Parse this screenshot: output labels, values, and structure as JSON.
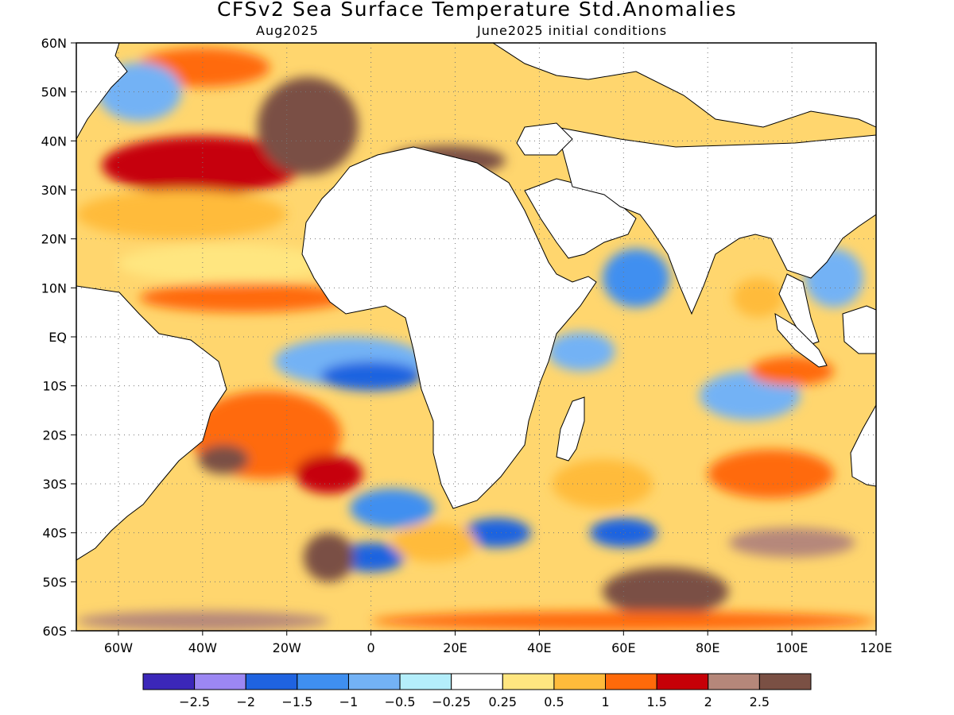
{
  "title": "CFSv2 Sea Surface Temperature Std.Anomalies",
  "subtitle_left": "Aug2025",
  "subtitle_right": "June2025 initial conditions",
  "map": {
    "lon_range": [
      -70,
      120
    ],
    "lat_range": [
      -60,
      60
    ],
    "lat_ticks": [
      {
        "value": 60,
        "label": "60N"
      },
      {
        "value": 50,
        "label": "50N"
      },
      {
        "value": 40,
        "label": "40N"
      },
      {
        "value": 30,
        "label": "30N"
      },
      {
        "value": 20,
        "label": "20N"
      },
      {
        "value": 10,
        "label": "10N"
      },
      {
        "value": 0,
        "label": "EQ"
      },
      {
        "value": -10,
        "label": "10S"
      },
      {
        "value": -20,
        "label": "20S"
      },
      {
        "value": -30,
        "label": "30S"
      },
      {
        "value": -40,
        "label": "40S"
      },
      {
        "value": -50,
        "label": "50S"
      },
      {
        "value": -60,
        "label": "60S"
      }
    ],
    "lon_ticks": [
      {
        "value": -60,
        "label": "60W"
      },
      {
        "value": -40,
        "label": "40W"
      },
      {
        "value": -20,
        "label": "20W"
      },
      {
        "value": 0,
        "label": "0"
      },
      {
        "value": 20,
        "label": "20E"
      },
      {
        "value": 40,
        "label": "40E"
      },
      {
        "value": 60,
        "label": "60E"
      },
      {
        "value": 80,
        "label": "80E"
      },
      {
        "value": 100,
        "label": "100E"
      },
      {
        "value": 120,
        "label": "120E"
      }
    ],
    "grid": "dotted"
  },
  "colorbar": {
    "colors": [
      "#3b27b9",
      "#9c87f3",
      "#1f63e0",
      "#3f8ff0",
      "#73b2f5",
      "#b4eefb",
      "#ffffff",
      "#ffe680",
      "#ffbb3b",
      "#ff6a0a",
      "#c60007",
      "#b5877a",
      "#7a5044"
    ],
    "labels": [
      "-2.5",
      "-2",
      "-1.5",
      "-1",
      "-0.5",
      "-0.25",
      "0.25",
      "0.5",
      "1",
      "1.5",
      "2",
      "2.5"
    ]
  },
  "anomaly_patches": [
    {
      "lon": -40,
      "lat": 35,
      "rx": 24,
      "ry": 6,
      "value": 1.6
    },
    {
      "lon": -15,
      "lat": 43,
      "rx": 12,
      "ry": 10,
      "value": 2.7
    },
    {
      "lon": -40,
      "lat": 55,
      "rx": 16,
      "ry": 4,
      "value": 1.3
    },
    {
      "lon": -55,
      "lat": 50,
      "rx": 10,
      "ry": 6,
      "value": -0.8
    },
    {
      "lon": -45,
      "lat": 25,
      "rx": 25,
      "ry": 5,
      "value": 0.9
    },
    {
      "lon": -35,
      "lat": 15,
      "rx": 25,
      "ry": 4,
      "value": 0.4
    },
    {
      "lon": -30,
      "lat": 8,
      "rx": 25,
      "ry": 3,
      "value": 1.2
    },
    {
      "lon": -5,
      "lat": -5,
      "rx": 18,
      "ry": 5,
      "value": -0.7
    },
    {
      "lon": 0,
      "lat": -8,
      "rx": 12,
      "ry": 3,
      "value": -1.6
    },
    {
      "lon": -25,
      "lat": -20,
      "rx": 18,
      "ry": 9,
      "value": 1.4
    },
    {
      "lon": -35,
      "lat": -25,
      "rx": 6,
      "ry": 3,
      "value": 2.6
    },
    {
      "lon": -10,
      "lat": -28,
      "rx": 8,
      "ry": 4,
      "value": 2.0
    },
    {
      "lon": 5,
      "lat": -35,
      "rx": 10,
      "ry": 4,
      "value": -1.0
    },
    {
      "lon": 0,
      "lat": -45,
      "rx": 8,
      "ry": 3,
      "value": -1.7
    },
    {
      "lon": 30,
      "lat": -40,
      "rx": 8,
      "ry": 3,
      "value": -1.8
    },
    {
      "lon": -10,
      "lat": -45,
      "rx": 6,
      "ry": 5,
      "value": 2.6
    },
    {
      "lon": 15,
      "lat": -42,
      "rx": 10,
      "ry": 4,
      "value": 1.0
    },
    {
      "lon": 60,
      "lat": -40,
      "rx": 8,
      "ry": 3,
      "value": -1.5
    },
    {
      "lon": 70,
      "lat": -52,
      "rx": 15,
      "ry": 5,
      "value": 2.7
    },
    {
      "lon": 55,
      "lat": -30,
      "rx": 12,
      "ry": 5,
      "value": 0.8
    },
    {
      "lon": 95,
      "lat": -28,
      "rx": 15,
      "ry": 5,
      "value": 1.4
    },
    {
      "lon": 100,
      "lat": -42,
      "rx": 15,
      "ry": 3,
      "value": 2.4
    },
    {
      "lon": 63,
      "lat": 12,
      "rx": 8,
      "ry": 6,
      "value": -1.2
    },
    {
      "lon": 50,
      "lat": -3,
      "rx": 8,
      "ry": 4,
      "value": -0.8
    },
    {
      "lon": 90,
      "lat": -12,
      "rx": 12,
      "ry": 5,
      "value": -0.9
    },
    {
      "lon": 100,
      "lat": -7,
      "rx": 10,
      "ry": 3,
      "value": 1.5
    },
    {
      "lon": 92,
      "lat": 8,
      "rx": 6,
      "ry": 4,
      "value": 0.6
    },
    {
      "lon": 110,
      "lat": 12,
      "rx": 7,
      "ry": 6,
      "value": -0.9
    },
    {
      "lon": 60,
      "lat": -58,
      "rx": 60,
      "ry": 2,
      "value": 1.5
    },
    {
      "lon": -40,
      "lat": -58,
      "rx": 30,
      "ry": 2,
      "value": 2.1
    },
    {
      "lon": 18,
      "lat": 36,
      "rx": 14,
      "ry": 3,
      "value": 2.6
    }
  ]
}
